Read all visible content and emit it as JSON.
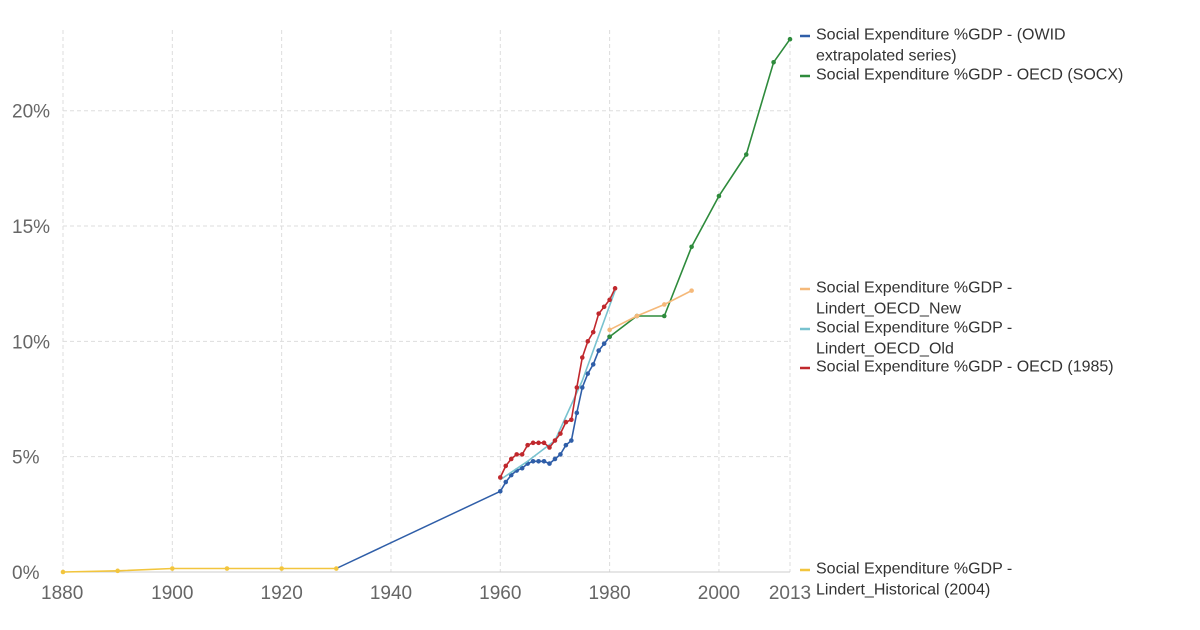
{
  "chart_data": {
    "type": "line",
    "xlim": [
      1880,
      2013
    ],
    "ylim": [
      0,
      23.5
    ],
    "x_ticks": [
      1880,
      1900,
      1920,
      1940,
      1960,
      1980,
      2000,
      2013
    ],
    "y_ticks": [
      0,
      5,
      10,
      15,
      20
    ],
    "y_tick_labels": [
      "0%",
      "5%",
      "10%",
      "15%",
      "20%"
    ],
    "grid": true,
    "legend_position": "right",
    "series": [
      {
        "name": "Social Expenditure %GDP - (OWID extrapolated series)",
        "legend_lines": [
          "Social Expenditure %GDP - (OWID",
          "extrapolated series)"
        ],
        "color": "#2f5ea8",
        "markers": true,
        "points": [
          [
            1960,
            3.5
          ],
          [
            1961,
            3.9
          ],
          [
            1962,
            4.2
          ],
          [
            1963,
            4.4
          ],
          [
            1964,
            4.5
          ],
          [
            1965,
            4.7
          ],
          [
            1966,
            4.8
          ],
          [
            1967,
            4.8
          ],
          [
            1968,
            4.8
          ],
          [
            1969,
            4.7
          ],
          [
            1970,
            4.9
          ],
          [
            1971,
            5.1
          ],
          [
            1972,
            5.5
          ],
          [
            1973,
            5.7
          ],
          [
            1974,
            6.9
          ],
          [
            1975,
            8.0
          ],
          [
            1976,
            8.6
          ],
          [
            1977,
            9.0
          ],
          [
            1978,
            9.6
          ],
          [
            1979,
            9.9
          ],
          [
            1980,
            10.2
          ]
        ]
      },
      {
        "name": "Social Expenditure %GDP - OECD (SOCX)",
        "legend_lines": [
          "Social Expenditure %GDP - OECD (SOCX)"
        ],
        "color": "#2e8b3c",
        "markers": true,
        "points": [
          [
            1980,
            10.2
          ],
          [
            1985,
            11.1
          ],
          [
            1990,
            11.1
          ],
          [
            1995,
            14.1
          ],
          [
            2000,
            16.3
          ],
          [
            2005,
            18.1
          ],
          [
            2010,
            22.1
          ],
          [
            2013,
            23.1
          ]
        ]
      },
      {
        "name": "Social Expenditure %GDP - Lindert_OECD_New",
        "legend_lines": [
          "Social Expenditure %GDP -",
          "Lindert_OECD_New"
        ],
        "color": "#f5b97a",
        "markers": true,
        "points": [
          [
            1980,
            10.5
          ],
          [
            1985,
            11.1
          ],
          [
            1990,
            11.6
          ],
          [
            1995,
            12.2
          ]
        ]
      },
      {
        "name": "Social Expenditure %GDP - Lindert_OECD_Old",
        "legend_lines": [
          "Social Expenditure %GDP -",
          "Lindert_OECD_Old"
        ],
        "color": "#78c2cf",
        "markers": false,
        "points": [
          [
            1960,
            4.0
          ],
          [
            1965,
            4.8
          ],
          [
            1970,
            5.7
          ],
          [
            1975,
            8.3
          ],
          [
            1981,
            12.2
          ]
        ]
      },
      {
        "name": "Social Expenditure %GDP - OECD (1985)",
        "legend_lines": [
          "Social Expenditure %GDP - OECD (1985)"
        ],
        "color": "#c0282d",
        "markers": true,
        "points": [
          [
            1960,
            4.1
          ],
          [
            1961,
            4.6
          ],
          [
            1962,
            4.9
          ],
          [
            1963,
            5.1
          ],
          [
            1964,
            5.1
          ],
          [
            1965,
            5.5
          ],
          [
            1966,
            5.6
          ],
          [
            1967,
            5.6
          ],
          [
            1968,
            5.6
          ],
          [
            1969,
            5.4
          ],
          [
            1970,
            5.7
          ],
          [
            1971,
            6.0
          ],
          [
            1972,
            6.5
          ],
          [
            1973,
            6.6
          ],
          [
            1974,
            8.0
          ],
          [
            1975,
            9.3
          ],
          [
            1976,
            10.0
          ],
          [
            1977,
            10.4
          ],
          [
            1978,
            11.2
          ],
          [
            1979,
            11.5
          ],
          [
            1980,
            11.8
          ],
          [
            1981,
            12.3
          ]
        ]
      },
      {
        "name": "Social Expenditure %GDP - Lindert_Historical (2004)",
        "legend_lines": [
          "Social Expenditure %GDP -",
          "Lindert_Historical (2004)"
        ],
        "color": "#f2c53d",
        "markers": true,
        "points": [
          [
            1880,
            0.0
          ],
          [
            1890,
            0.05
          ],
          [
            1900,
            0.15
          ],
          [
            1910,
            0.15
          ],
          [
            1920,
            0.15
          ],
          [
            1930,
            0.15
          ]
        ]
      }
    ],
    "connector": {
      "color": "#2f5ea8",
      "points": [
        [
          1930,
          0.15
        ],
        [
          1960,
          3.5
        ]
      ]
    }
  }
}
